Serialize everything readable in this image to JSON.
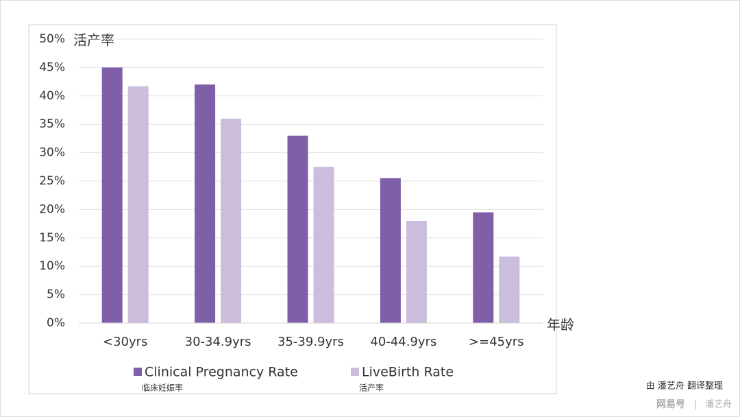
{
  "chart_data": {
    "type": "bar",
    "y_label": "活产率",
    "x_label": "年龄",
    "categories": [
      "<30yrs",
      "30-34.9yrs",
      "35-39.9yrs",
      "40-44.9yrs",
      ">=45yrs"
    ],
    "series": [
      {
        "name": "Clinical Pregnancy Rate",
        "note": "临床妊娠率",
        "color": "#7f5fa8",
        "values": [
          45,
          42,
          33,
          25.5,
          19.5
        ]
      },
      {
        "name": "LiveBirth Rate",
        "note": "活产率",
        "color": "#cbbedd",
        "values": [
          41.7,
          36,
          27.5,
          18,
          11.7
        ]
      }
    ],
    "ylim": [
      0,
      50
    ],
    "yticks": [
      {
        "value": 0,
        "label": "0%"
      },
      {
        "value": 5,
        "label": "5%"
      },
      {
        "value": 10,
        "label": "10%"
      },
      {
        "value": 15,
        "label": "15%"
      },
      {
        "value": 20,
        "label": "20%"
      },
      {
        "value": 25,
        "label": "25%"
      },
      {
        "value": 30,
        "label": "30%"
      },
      {
        "value": 35,
        "label": "35%"
      },
      {
        "value": 40,
        "label": "40%"
      },
      {
        "value": 45,
        "label": "45%"
      },
      {
        "value": 50,
        "label": "50%"
      }
    ],
    "grid": true
  },
  "footer": {
    "credit": "由 潘艺舟 翻译整理",
    "source": "网易号",
    "author": "潘艺舟"
  }
}
